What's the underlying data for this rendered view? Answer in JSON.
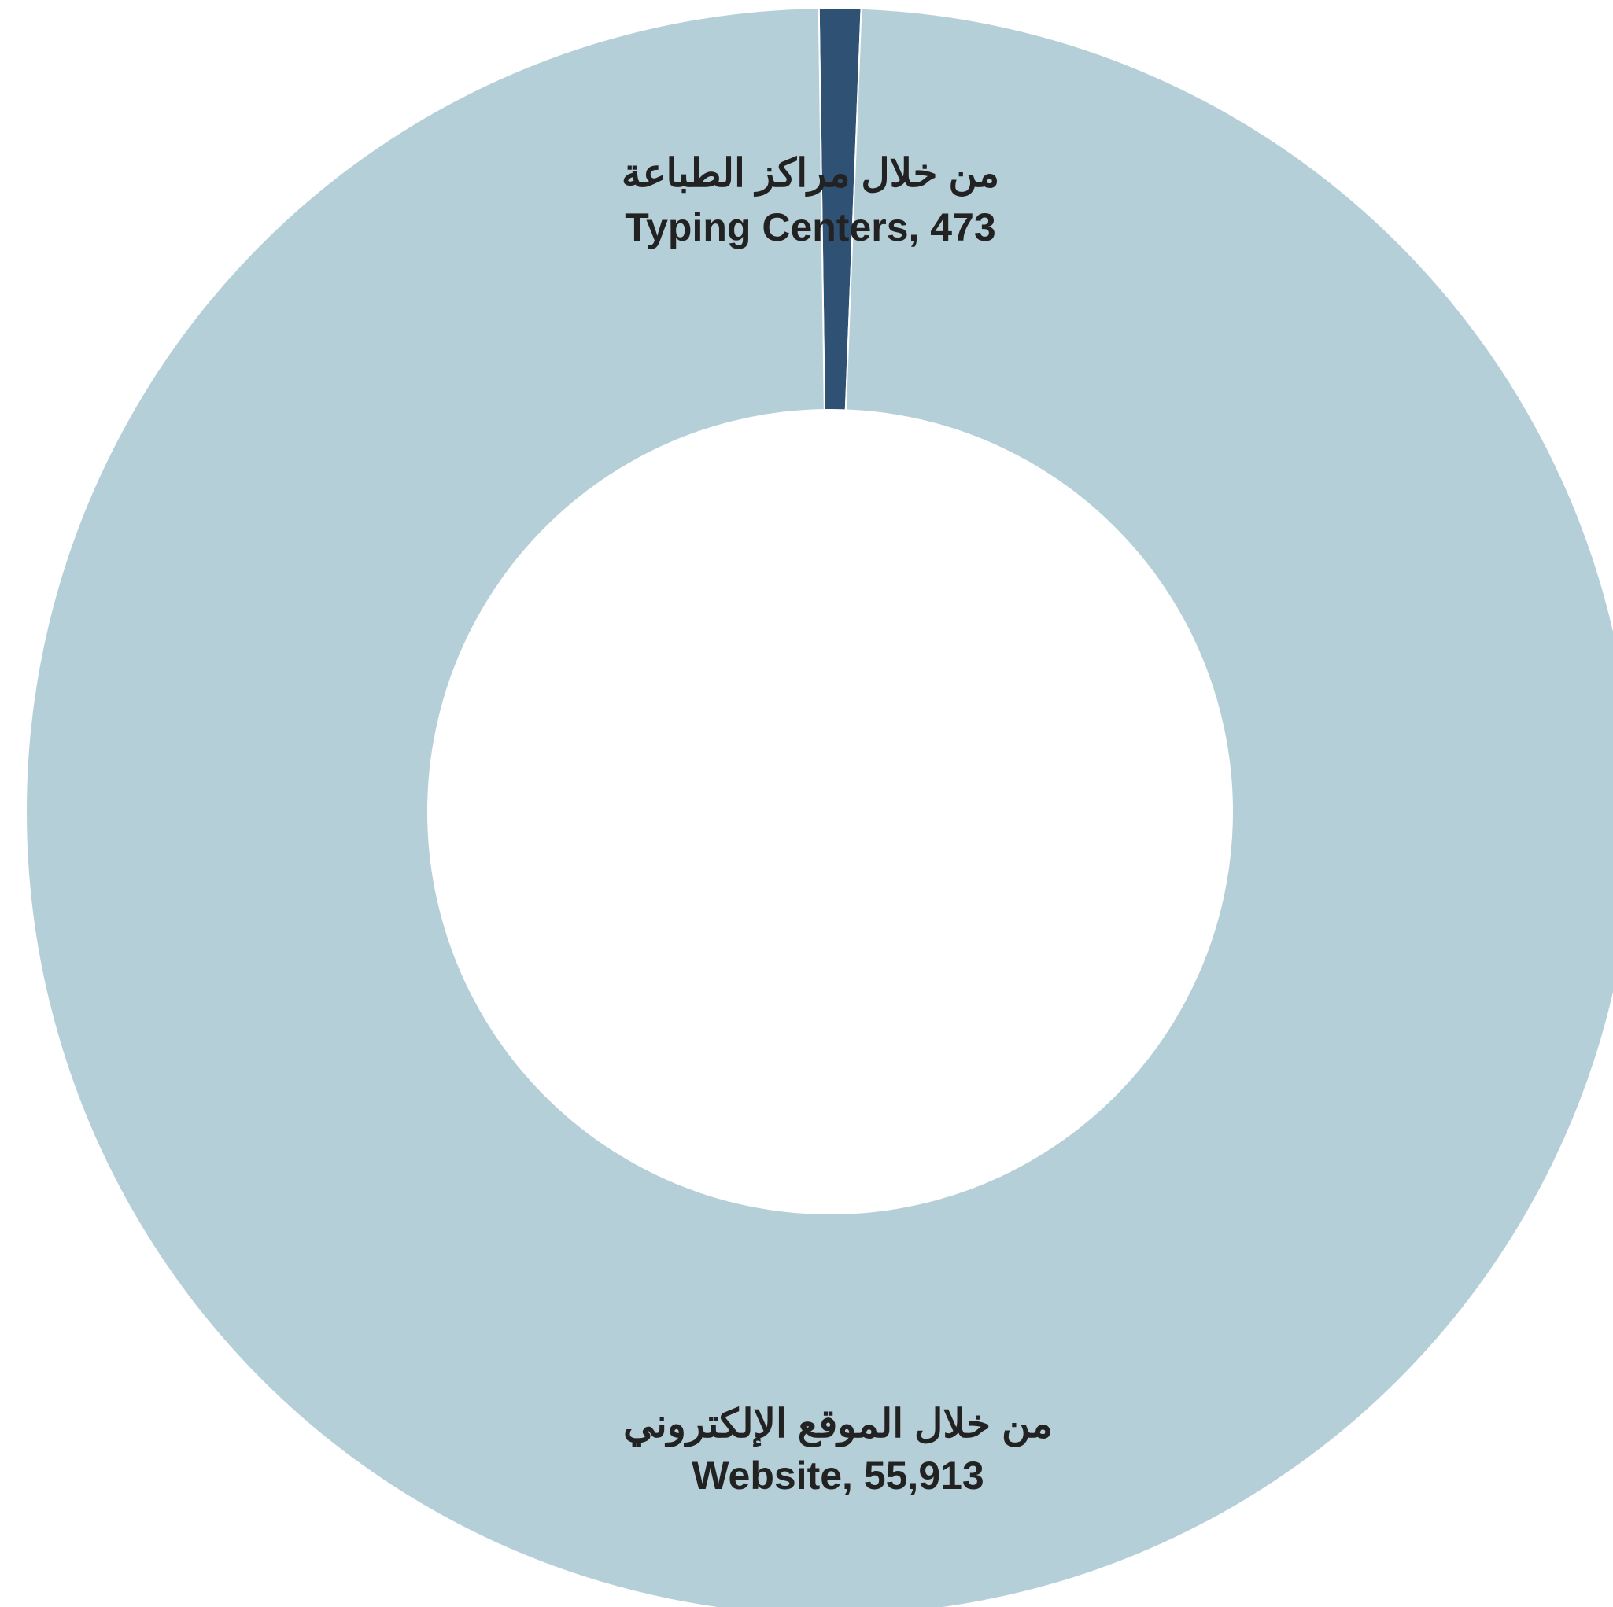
{
  "chart_data": {
    "type": "pie",
    "variant": "donut",
    "title": "",
    "slices": [
      {
        "label_ar": "من خلال مراكز الطباعة",
        "label_en": "Typing Centers, 473",
        "category": "Typing Centers",
        "value": 473,
        "color": "#2f5174"
      },
      {
        "label_ar": "من خلال الموقع الإلكتروني",
        "label_en": "Website, 55,913",
        "category": "Website",
        "value": 55913,
        "color": "#b5cfd8"
      }
    ],
    "legend": "none"
  }
}
